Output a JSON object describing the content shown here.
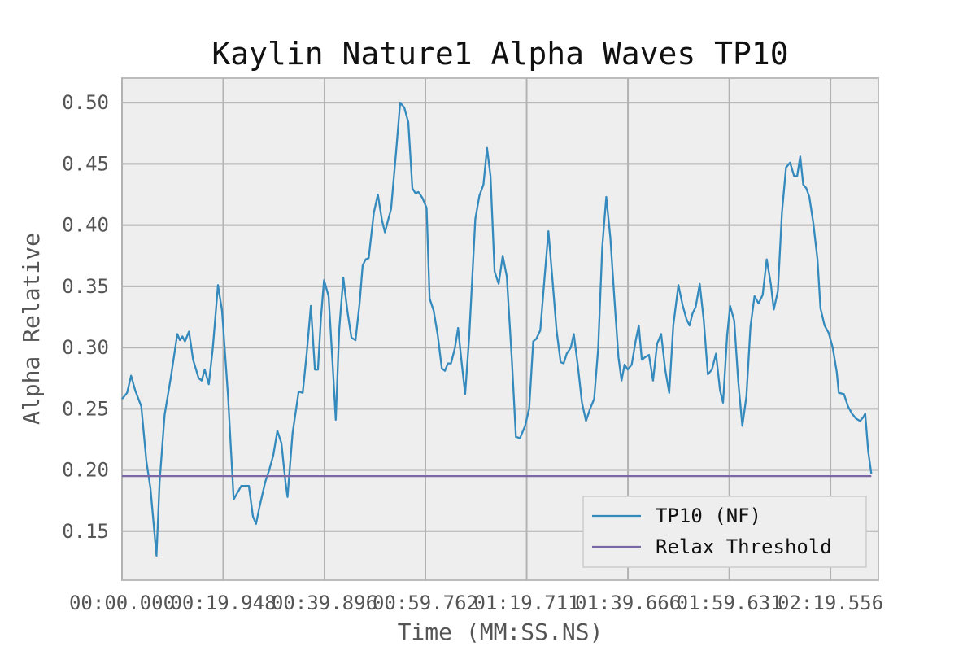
{
  "chart_data": {
    "type": "line",
    "title": "Kaylin Nature1 Alpha Waves TP10",
    "xlabel": "Time (MM:SS.NS)",
    "ylabel": "Alpha Relative",
    "xlim": [
      0,
      149
    ],
    "ylim": [
      0.11,
      0.52
    ],
    "x_ticks": [
      {
        "value": 0,
        "label": "00:00.000"
      },
      {
        "value": 19.948,
        "label": "00:19.948"
      },
      {
        "value": 39.896,
        "label": "00:39.896"
      },
      {
        "value": 59.762,
        "label": "00:59.762"
      },
      {
        "value": 79.711,
        "label": "01:19.711"
      },
      {
        "value": 99.666,
        "label": "01:39.666"
      },
      {
        "value": 119.631,
        "label": "01:59.631"
      },
      {
        "value": 139.556,
        "label": "02:19.556"
      }
    ],
    "y_ticks": [
      {
        "value": 0.15,
        "label": "0.15"
      },
      {
        "value": 0.2,
        "label": "0.20"
      },
      {
        "value": 0.25,
        "label": "0.25"
      },
      {
        "value": 0.3,
        "label": "0.30"
      },
      {
        "value": 0.35,
        "label": "0.35"
      },
      {
        "value": 0.4,
        "label": "0.40"
      },
      {
        "value": 0.45,
        "label": "0.45"
      },
      {
        "value": 0.5,
        "label": "0.50"
      }
    ],
    "grid": true,
    "legend_position": "lower-right",
    "series": [
      {
        "name": "TP10 (NF)",
        "color": "#348abd",
        "points": [
          [
            0.0,
            0.258
          ],
          [
            1.0,
            0.263
          ],
          [
            1.8,
            0.277
          ],
          [
            2.6,
            0.265
          ],
          [
            3.8,
            0.252
          ],
          [
            4.8,
            0.207
          ],
          [
            5.6,
            0.185
          ],
          [
            6.8,
            0.13
          ],
          [
            7.4,
            0.19
          ],
          [
            8.4,
            0.245
          ],
          [
            9.6,
            0.275
          ],
          [
            10.9,
            0.311
          ],
          [
            11.4,
            0.306
          ],
          [
            11.9,
            0.309
          ],
          [
            12.4,
            0.305
          ],
          [
            13.2,
            0.313
          ],
          [
            14.0,
            0.29
          ],
          [
            15.1,
            0.275
          ],
          [
            15.7,
            0.273
          ],
          [
            16.3,
            0.282
          ],
          [
            17.1,
            0.27
          ],
          [
            17.9,
            0.3
          ],
          [
            18.9,
            0.351
          ],
          [
            19.7,
            0.33
          ],
          [
            20.9,
            0.26
          ],
          [
            22.0,
            0.176
          ],
          [
            23.5,
            0.187
          ],
          [
            25.0,
            0.187
          ],
          [
            25.8,
            0.162
          ],
          [
            26.4,
            0.156
          ],
          [
            27.1,
            0.17
          ],
          [
            28.2,
            0.19
          ],
          [
            29.0,
            0.2
          ],
          [
            29.8,
            0.212
          ],
          [
            30.6,
            0.232
          ],
          [
            31.4,
            0.222
          ],
          [
            32.2,
            0.19
          ],
          [
            32.6,
            0.178
          ],
          [
            33.6,
            0.23
          ],
          [
            34.8,
            0.264
          ],
          [
            35.6,
            0.263
          ],
          [
            36.4,
            0.296
          ],
          [
            37.2,
            0.334
          ],
          [
            38.0,
            0.282
          ],
          [
            38.6,
            0.282
          ],
          [
            39.2,
            0.325
          ],
          [
            39.8,
            0.355
          ],
          [
            40.7,
            0.342
          ],
          [
            41.5,
            0.286
          ],
          [
            42.1,
            0.241
          ],
          [
            42.8,
            0.315
          ],
          [
            43.6,
            0.357
          ],
          [
            44.4,
            0.33
          ],
          [
            45.2,
            0.308
          ],
          [
            46.0,
            0.306
          ],
          [
            46.8,
            0.336
          ],
          [
            47.4,
            0.367
          ],
          [
            48.0,
            0.372
          ],
          [
            48.6,
            0.373
          ],
          [
            49.6,
            0.41
          ],
          [
            50.4,
            0.425
          ],
          [
            51.2,
            0.404
          ],
          [
            51.8,
            0.394
          ],
          [
            52.4,
            0.404
          ],
          [
            53.0,
            0.413
          ],
          [
            54.0,
            0.46
          ],
          [
            54.8,
            0.5
          ],
          [
            55.6,
            0.496
          ],
          [
            56.4,
            0.484
          ],
          [
            57.2,
            0.43
          ],
          [
            57.8,
            0.426
          ],
          [
            58.4,
            0.427
          ],
          [
            59.2,
            0.422
          ],
          [
            60.0,
            0.414
          ],
          [
            60.6,
            0.34
          ],
          [
            61.4,
            0.33
          ],
          [
            62.2,
            0.31
          ],
          [
            63.0,
            0.283
          ],
          [
            63.6,
            0.281
          ],
          [
            64.2,
            0.287
          ],
          [
            64.8,
            0.287
          ],
          [
            65.6,
            0.3
          ],
          [
            66.2,
            0.316
          ],
          [
            66.8,
            0.292
          ],
          [
            67.6,
            0.262
          ],
          [
            68.4,
            0.309
          ],
          [
            69.6,
            0.405
          ],
          [
            70.4,
            0.424
          ],
          [
            71.2,
            0.433
          ],
          [
            71.9,
            0.463
          ],
          [
            72.6,
            0.44
          ],
          [
            73.4,
            0.362
          ],
          [
            74.2,
            0.352
          ],
          [
            75.0,
            0.375
          ],
          [
            75.8,
            0.358
          ],
          [
            76.8,
            0.289
          ],
          [
            77.6,
            0.227
          ],
          [
            78.4,
            0.226
          ],
          [
            79.4,
            0.236
          ],
          [
            80.2,
            0.25
          ],
          [
            81.0,
            0.305
          ],
          [
            81.6,
            0.307
          ],
          [
            82.4,
            0.314
          ],
          [
            83.2,
            0.355
          ],
          [
            84.0,
            0.395
          ],
          [
            84.8,
            0.355
          ],
          [
            85.6,
            0.314
          ],
          [
            86.4,
            0.288
          ],
          [
            87.0,
            0.287
          ],
          [
            87.6,
            0.295
          ],
          [
            88.4,
            0.3
          ],
          [
            89.0,
            0.311
          ],
          [
            89.8,
            0.285
          ],
          [
            90.6,
            0.255
          ],
          [
            91.4,
            0.24
          ],
          [
            92.2,
            0.25
          ],
          [
            93.0,
            0.258
          ],
          [
            93.8,
            0.3
          ],
          [
            94.6,
            0.382
          ],
          [
            95.4,
            0.423
          ],
          [
            96.2,
            0.39
          ],
          [
            97.0,
            0.34
          ],
          [
            97.8,
            0.292
          ],
          [
            98.4,
            0.273
          ],
          [
            99.0,
            0.286
          ],
          [
            99.6,
            0.282
          ],
          [
            100.4,
            0.286
          ],
          [
            101.2,
            0.306
          ],
          [
            101.8,
            0.318
          ],
          [
            102.4,
            0.29
          ],
          [
            103.0,
            0.292
          ],
          [
            103.8,
            0.294
          ],
          [
            104.6,
            0.273
          ],
          [
            105.4,
            0.303
          ],
          [
            106.2,
            0.311
          ],
          [
            107.0,
            0.282
          ],
          [
            107.8,
            0.263
          ],
          [
            108.6,
            0.318
          ],
          [
            109.6,
            0.351
          ],
          [
            110.4,
            0.335
          ],
          [
            111.2,
            0.323
          ],
          [
            111.8,
            0.318
          ],
          [
            112.4,
            0.328
          ],
          [
            113.0,
            0.333
          ],
          [
            113.8,
            0.352
          ],
          [
            114.6,
            0.322
          ],
          [
            115.4,
            0.278
          ],
          [
            116.2,
            0.282
          ],
          [
            117.0,
            0.295
          ],
          [
            117.8,
            0.265
          ],
          [
            118.4,
            0.255
          ],
          [
            119.2,
            0.31
          ],
          [
            119.8,
            0.334
          ],
          [
            120.6,
            0.322
          ],
          [
            121.4,
            0.272
          ],
          [
            122.2,
            0.236
          ],
          [
            123.0,
            0.26
          ],
          [
            123.8,
            0.317
          ],
          [
            124.6,
            0.342
          ],
          [
            125.4,
            0.336
          ],
          [
            126.2,
            0.343
          ],
          [
            127.0,
            0.372
          ],
          [
            127.8,
            0.352
          ],
          [
            128.4,
            0.331
          ],
          [
            129.2,
            0.346
          ],
          [
            130.0,
            0.41
          ],
          [
            130.8,
            0.447
          ],
          [
            131.6,
            0.451
          ],
          [
            132.4,
            0.44
          ],
          [
            133.0,
            0.44
          ],
          [
            133.6,
            0.456
          ],
          [
            134.2,
            0.433
          ],
          [
            134.8,
            0.43
          ],
          [
            135.4,
            0.423
          ],
          [
            136.2,
            0.401
          ],
          [
            137.0,
            0.372
          ],
          [
            137.6,
            0.332
          ],
          [
            138.4,
            0.318
          ],
          [
            139.2,
            0.312
          ],
          [
            140.0,
            0.3
          ],
          [
            140.8,
            0.28
          ],
          [
            141.2,
            0.263
          ],
          [
            142.2,
            0.262
          ],
          [
            143.0,
            0.252
          ],
          [
            143.8,
            0.246
          ],
          [
            144.6,
            0.242
          ],
          [
            145.4,
            0.24
          ],
          [
            146.0,
            0.243
          ],
          [
            146.4,
            0.246
          ],
          [
            147.0,
            0.215
          ],
          [
            147.6,
            0.197
          ]
        ]
      },
      {
        "name": "Relax Threshold",
        "color": "#7a68a6",
        "points": [
          [
            0.0,
            0.195
          ],
          [
            147.6,
            0.195
          ]
        ]
      }
    ]
  }
}
